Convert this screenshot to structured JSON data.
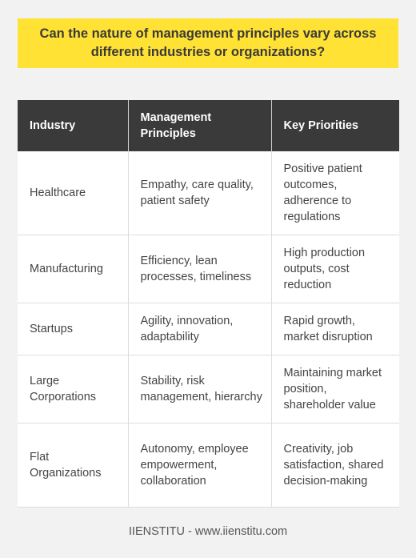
{
  "title": "Can the nature of management principles vary across different industries or organizations?",
  "table": {
    "headers": [
      "Industry",
      "Management Principles",
      "Key Priorities"
    ],
    "rows": [
      [
        "Healthcare",
        "Empathy, care quality, patient safety",
        "Positive patient outcomes, adherence to regulations"
      ],
      [
        "Manufacturing",
        "Efficiency, lean processes, timeliness",
        "High production outputs, cost reduction"
      ],
      [
        "Startups",
        "Agility, innovation, adaptability",
        "Rapid growth, market disruption"
      ],
      [
        "Large Corporations",
        "Stability, risk management, hierarchy",
        "Maintaining market position, shareholder value"
      ],
      [
        "Flat Organizations",
        "Autonomy, employee empowerment, collaboration",
        "Creativity, job satisfaction, shared decision-making"
      ]
    ]
  },
  "footer": "IIENSTITU - www.iienstitu.com",
  "colors": {
    "background": "#f2f2f2",
    "title_bg": "#ffe234",
    "header_bg": "#3a3a3a",
    "cell_bg": "#ffffff"
  }
}
